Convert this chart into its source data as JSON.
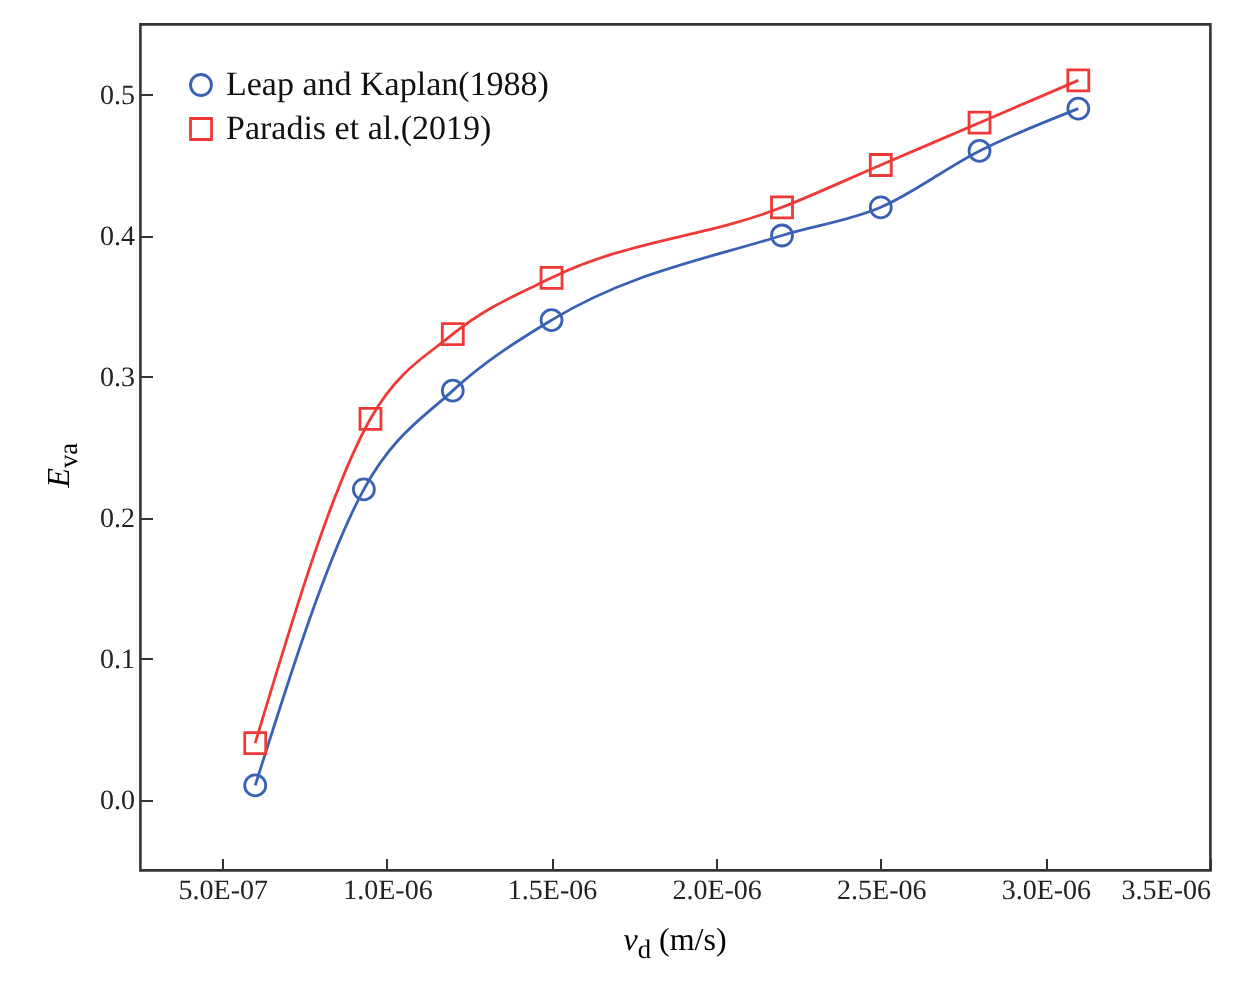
{
  "chart_data": {
    "type": "line",
    "xlabel": "v$_{d}$ (m/s)",
    "ylabel": "E$_{va}$",
    "series": [
      {
        "name": "Leap and Kaplan(1988)",
        "color": "#3a62b4",
        "marker": "circle",
        "x": [
          6e-07,
          9.3e-07,
          1.2e-06,
          1.5e-06,
          2.2e-06,
          2.5e-06,
          2.8e-06,
          3.1e-06
        ],
        "values": [
          0.01,
          0.22,
          0.29,
          0.34,
          0.4,
          0.42,
          0.46,
          0.49
        ]
      },
      {
        "name": "Paradis et al.(2019)",
        "color": "#ee3a36",
        "marker": "square",
        "x": [
          6e-07,
          9.5e-07,
          1.2e-06,
          1.5e-06,
          2.2e-06,
          2.5e-06,
          2.8e-06,
          3.1e-06
        ],
        "values": [
          0.04,
          0.27,
          0.33,
          0.37,
          0.42,
          0.45,
          0.48,
          0.51
        ]
      }
    ],
    "xlim": [
      2.5e-07,
      3.5e-06
    ],
    "xticks": [
      {
        "value": 5e-07,
        "label": "5.0E-07"
      },
      {
        "value": 1e-06,
        "label": "1.0E-06"
      },
      {
        "value": 1.5e-06,
        "label": "1.5E-06"
      },
      {
        "value": 2e-06,
        "label": "2.0E-06"
      },
      {
        "value": 2.5e-06,
        "label": "2.5E-06"
      },
      {
        "value": 3e-06,
        "label": "3.0E-06"
      },
      {
        "value": 3.5e-06,
        "label": "3.5E-06"
      }
    ],
    "ylim": [
      -0.05,
      0.55
    ],
    "yticks": [
      {
        "value": 0,
        "label": "0.0"
      },
      0.1,
      0.2,
      0.3,
      0.4,
      0.5
    ],
    "legend": "top left",
    "line_style": "solid",
    "grid": false
  }
}
